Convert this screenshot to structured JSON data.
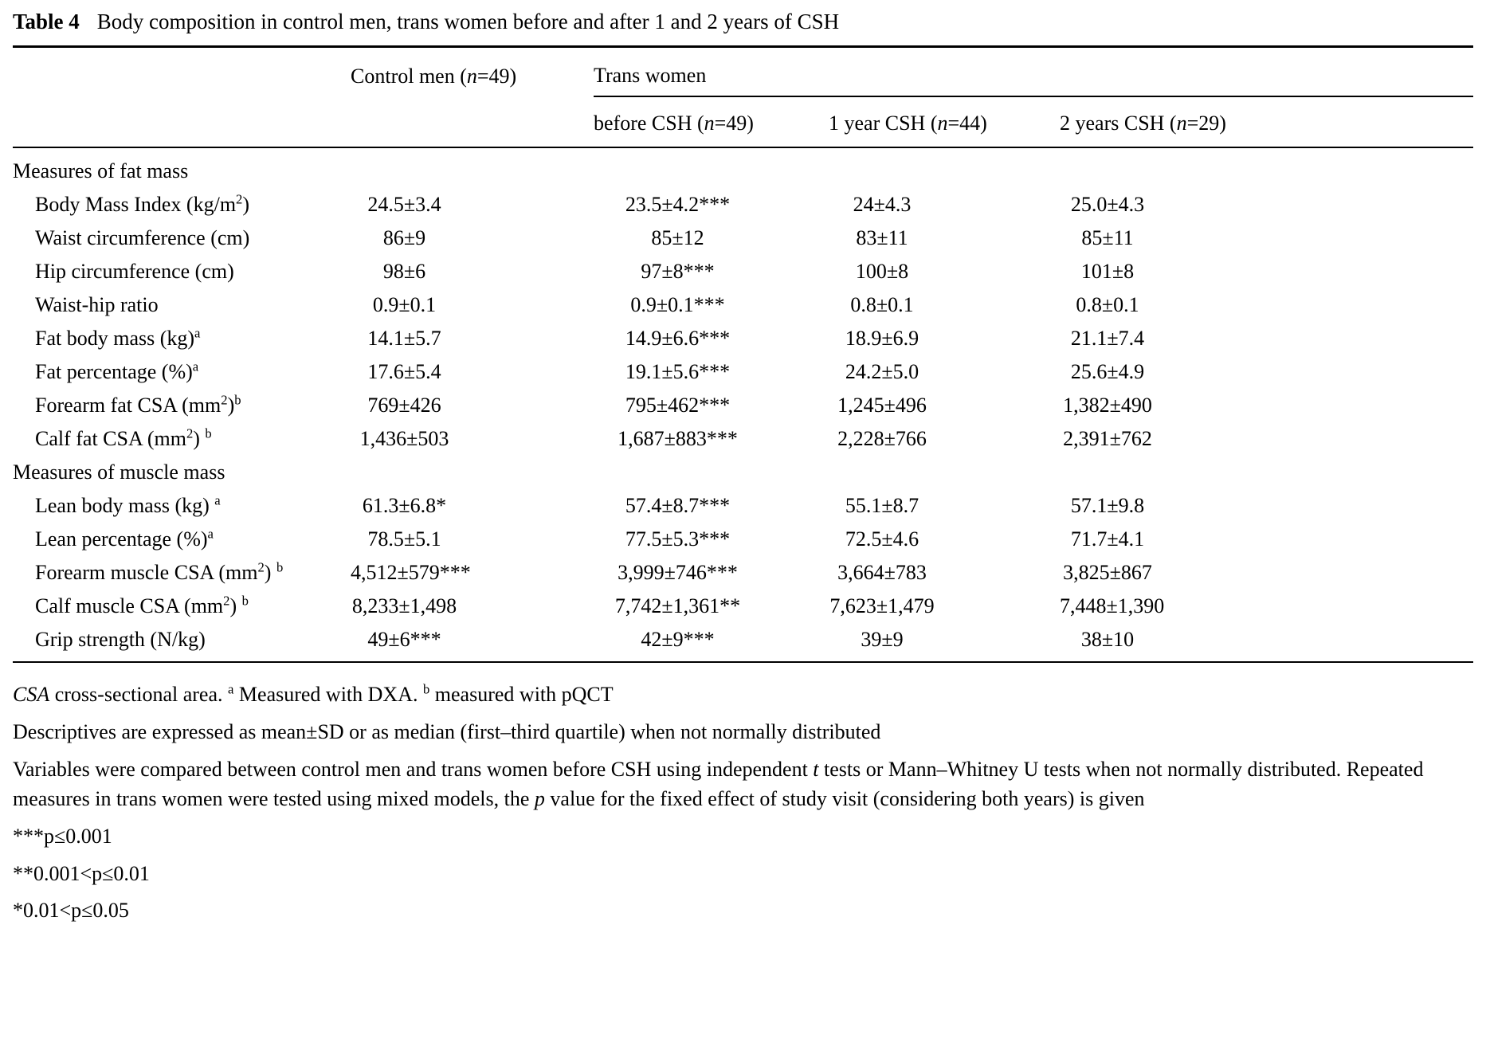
{
  "title": {
    "label": "Table 4",
    "text": "Body composition in control men, trans women before and after 1 and 2 years of CSH"
  },
  "header": {
    "control": "Control men (~{n}=49)",
    "group": "Trans women",
    "subcols": [
      "before CSH (~{n}=49)",
      "1 year CSH (~{n}=44)",
      "2 years CSH (~{n}=29)"
    ]
  },
  "sections": [
    {
      "label": "Measures of fat mass",
      "rows": [
        {
          "label": "Body Mass Index (kg/m^{2})",
          "values": [
            "24.5±3.4",
            "23.5±4.2***",
            "24±4.3",
            "25.0±4.3"
          ]
        },
        {
          "label": "Waist circumference (cm)",
          "values": [
            "86±9",
            "85±12",
            "83±11",
            "85±11"
          ]
        },
        {
          "label": "Hip circumference (cm)",
          "values": [
            "98±6",
            "97±8***",
            "100±8",
            "101±8"
          ]
        },
        {
          "label": "Waist-hip ratio",
          "values": [
            "0.9±0.1",
            "0.9±0.1***",
            "0.8±0.1",
            "0.8±0.1"
          ]
        },
        {
          "label": "Fat body mass (kg)^{a}",
          "values": [
            "14.1±5.7",
            "14.9±6.6***",
            "18.9±6.9",
            "21.1±7.4"
          ]
        },
        {
          "label": "Fat percentage (%)^{a}",
          "values": [
            "17.6±5.4",
            "19.1±5.6***",
            "24.2±5.0",
            "25.6±4.9"
          ]
        },
        {
          "label": "Forearm fat CSA (mm^{2})^{b}",
          "values": [
            "769±426",
            "795±462***",
            "1,245±496",
            "1,382±490"
          ]
        },
        {
          "label": "Calf fat CSA (mm^{2}) ^{b}",
          "values": [
            "1,436±503",
            "1,687±883***",
            "2,228±766",
            "2,391±762"
          ]
        }
      ]
    },
    {
      "label": "Measures of muscle mass",
      "rows": [
        {
          "label": "Lean body mass (kg) ^{a}",
          "values": [
            "61.3±6.8*",
            "57.4±8.7***",
            "55.1±8.7",
            "57.1±9.8"
          ]
        },
        {
          "label": "Lean percentage (%)^{a}",
          "values": [
            "78.5±5.1",
            "77.5±5.3***",
            "72.5±4.6",
            "71.7±4.1"
          ]
        },
        {
          "label": "Forearm muscle CSA (mm^{2}) ^{b}",
          "values": [
            "4,512±579***",
            "3,999±746***",
            "3,664±783",
            "3,825±867"
          ]
        },
        {
          "label": "Calf muscle CSA (mm^{2}) ^{b}",
          "values": [
            "8,233±1,498",
            "7,742±1,361**",
            "7,623±1,479",
            "7,448±1,390"
          ]
        },
        {
          "label": "Grip strength (N/kg)",
          "values": [
            "49±6***",
            "42±9***",
            "39±9",
            "38±10"
          ]
        }
      ]
    }
  ],
  "footnotes": [
    "~{CSA} cross-sectional area. ^{a} Measured with DXA. ^{b} measured with pQCT",
    "Descriptives are expressed as mean±SD or as median (first–third quartile) when not normally distributed",
    "Variables were compared between control men and trans women before CSH using independent ~{t} tests or Mann–Whitney U tests when not normally distributed. Repeated measures in trans women were tested using mixed models, the ~{p} value for the fixed effect of study visit (considering both years) is given",
    "***p≤0.001",
    "**0.001<p≤0.01",
    "*0.01<p≤0.05"
  ]
}
